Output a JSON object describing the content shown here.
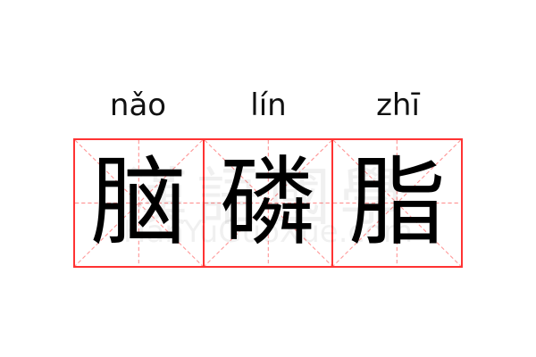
{
  "word": [
    {
      "pinyin": "nǎo",
      "hanzi": "脑"
    },
    {
      "pinyin": "lín",
      "hanzi": "磷"
    },
    {
      "pinyin": "zhī",
      "hanzi": "脂"
    }
  ],
  "watermark": {
    "chinese": "漢語國學",
    "latin": "HanYuGuoXue.com"
  },
  "colors": {
    "grid_border": "#ff3333",
    "grid_guides": "#ff9999",
    "text": "#000000"
  }
}
